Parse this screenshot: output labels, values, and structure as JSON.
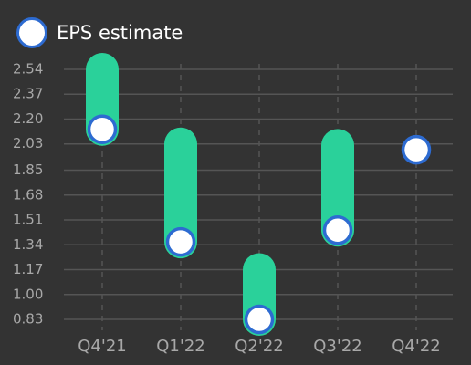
{
  "legend": {
    "label": "EPS estimate",
    "placement": "top-left"
  },
  "colors": {
    "background": "#333333",
    "bar": "#2ad19a",
    "marker_fill": "#ffffff",
    "marker_stroke": "#2d6bd1",
    "grid": "#555555",
    "tick_label": "#a8a8a8"
  },
  "chart_data": {
    "type": "range-bar",
    "categories": [
      "Q4'21",
      "Q1'22",
      "Q2'22",
      "Q3'22",
      "Q4'22"
    ],
    "y_ticks": [
      "0.83",
      "1.00",
      "1.17",
      "1.34",
      "1.51",
      "1.68",
      "1.85",
      "2.03",
      "2.20",
      "2.37",
      "2.54"
    ],
    "ylim": [
      0.83,
      2.54
    ],
    "grid": true,
    "series": [
      {
        "name": "EPS estimate",
        "values": [
          2.13,
          1.36,
          0.83,
          1.44,
          1.99
        ]
      }
    ],
    "ranges": [
      {
        "low": 2.13,
        "high": 2.54
      },
      {
        "low": 1.36,
        "high": 2.03
      },
      {
        "low": 0.83,
        "high": 1.17
      },
      {
        "low": 1.44,
        "high": 2.02
      },
      null
    ]
  }
}
